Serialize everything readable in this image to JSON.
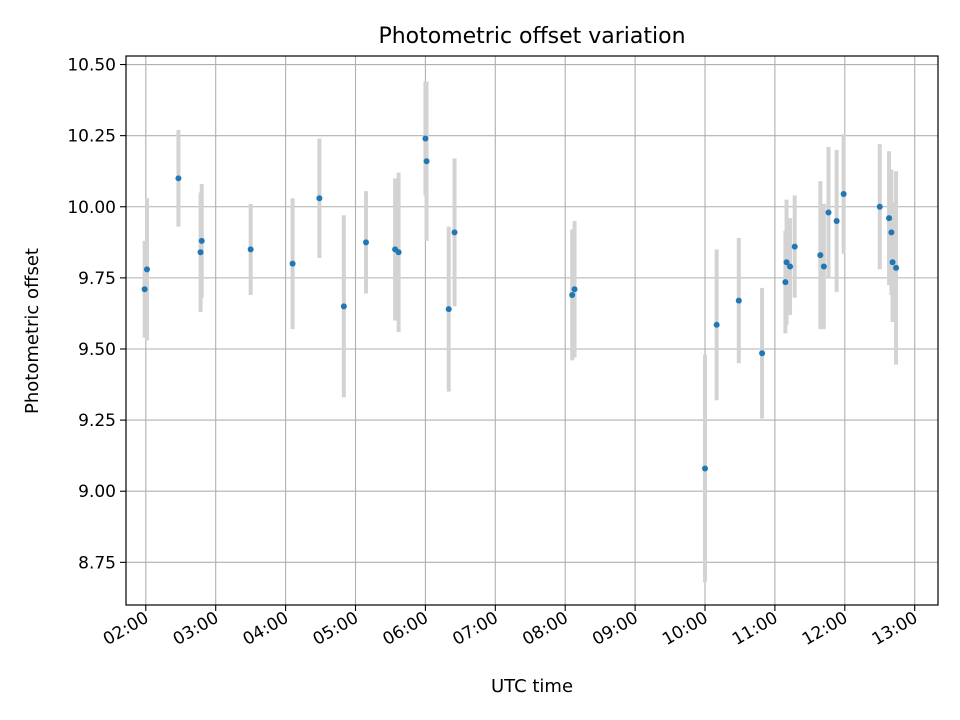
{
  "chart_data": {
    "type": "scatter",
    "title": "Photometric offset variation",
    "xlabel": "UTC time",
    "ylabel": "Photometric offset",
    "grid": true,
    "legend": "none",
    "xlim": [
      "01:43",
      "13:20"
    ],
    "ylim": [
      8.6,
      10.53
    ],
    "x_ticks": [
      "02:00",
      "03:00",
      "04:00",
      "05:00",
      "06:00",
      "07:00",
      "08:00",
      "09:00",
      "10:00",
      "11:00",
      "12:00",
      "13:00"
    ],
    "y_ticks": [
      "8.75",
      "9.00",
      "9.25",
      "9.50",
      "9.75",
      "10.00",
      "10.25",
      "10.50"
    ],
    "colors": {
      "marker": "#1f77b4",
      "errorbar": "#d3d3d3",
      "grid": "#b0b0b0"
    },
    "series": [
      {
        "points": [
          {
            "x": "01:59",
            "y": 9.71,
            "err": 0.17
          },
          {
            "x": "02:01",
            "y": 9.78,
            "err": 0.25
          },
          {
            "x": "02:28",
            "y": 10.1,
            "err": 0.17
          },
          {
            "x": "02:47",
            "y": 9.84,
            "err": 0.21
          },
          {
            "x": "02:48",
            "y": 9.88,
            "err": 0.2
          },
          {
            "x": "03:30",
            "y": 9.85,
            "err": 0.16
          },
          {
            "x": "04:06",
            "y": 9.8,
            "err": 0.23
          },
          {
            "x": "04:29",
            "y": 10.03,
            "err": 0.21
          },
          {
            "x": "04:50",
            "y": 9.65,
            "err": 0.32
          },
          {
            "x": "05:09",
            "y": 9.875,
            "err": 0.18
          },
          {
            "x": "05:34",
            "y": 9.85,
            "err": 0.25
          },
          {
            "x": "05:37",
            "y": 9.84,
            "err": 0.28
          },
          {
            "x": "06:00",
            "y": 10.24,
            "err": 0.2
          },
          {
            "x": "06:01",
            "y": 10.16,
            "err": 0.28
          },
          {
            "x": "06:20",
            "y": 9.64,
            "err": 0.29
          },
          {
            "x": "06:25",
            "y": 9.91,
            "err": 0.26
          },
          {
            "x": "08:06",
            "y": 9.69,
            "err": 0.23
          },
          {
            "x": "08:08",
            "y": 9.71,
            "err": 0.24
          },
          {
            "x": "10:00",
            "y": 9.08,
            "err": 0.4
          },
          {
            "x": "10:10",
            "y": 9.585,
            "err": 0.265
          },
          {
            "x": "10:29",
            "y": 9.67,
            "err": 0.22
          },
          {
            "x": "10:49",
            "y": 9.485,
            "err": 0.23
          },
          {
            "x": "11:09",
            "y": 9.735,
            "err": 0.18
          },
          {
            "x": "11:10",
            "y": 9.805,
            "err": 0.22
          },
          {
            "x": "11:13",
            "y": 9.79,
            "err": 0.17
          },
          {
            "x": "11:17",
            "y": 9.86,
            "err": 0.18
          },
          {
            "x": "11:39",
            "y": 9.83,
            "err": 0.26
          },
          {
            "x": "11:42",
            "y": 9.79,
            "err": 0.22
          },
          {
            "x": "11:46",
            "y": 9.98,
            "err": 0.23
          },
          {
            "x": "11:53",
            "y": 9.95,
            "err": 0.25
          },
          {
            "x": "11:59",
            "y": 10.045,
            "err": 0.21
          },
          {
            "x": "12:30",
            "y": 10.0,
            "err": 0.22
          },
          {
            "x": "12:38",
            "y": 9.96,
            "err": 0.235
          },
          {
            "x": "12:40",
            "y": 9.91,
            "err": 0.22
          },
          {
            "x": "12:41",
            "y": 9.805,
            "err": 0.21
          },
          {
            "x": "12:44",
            "y": 9.785,
            "err": 0.34
          }
        ]
      }
    ]
  }
}
